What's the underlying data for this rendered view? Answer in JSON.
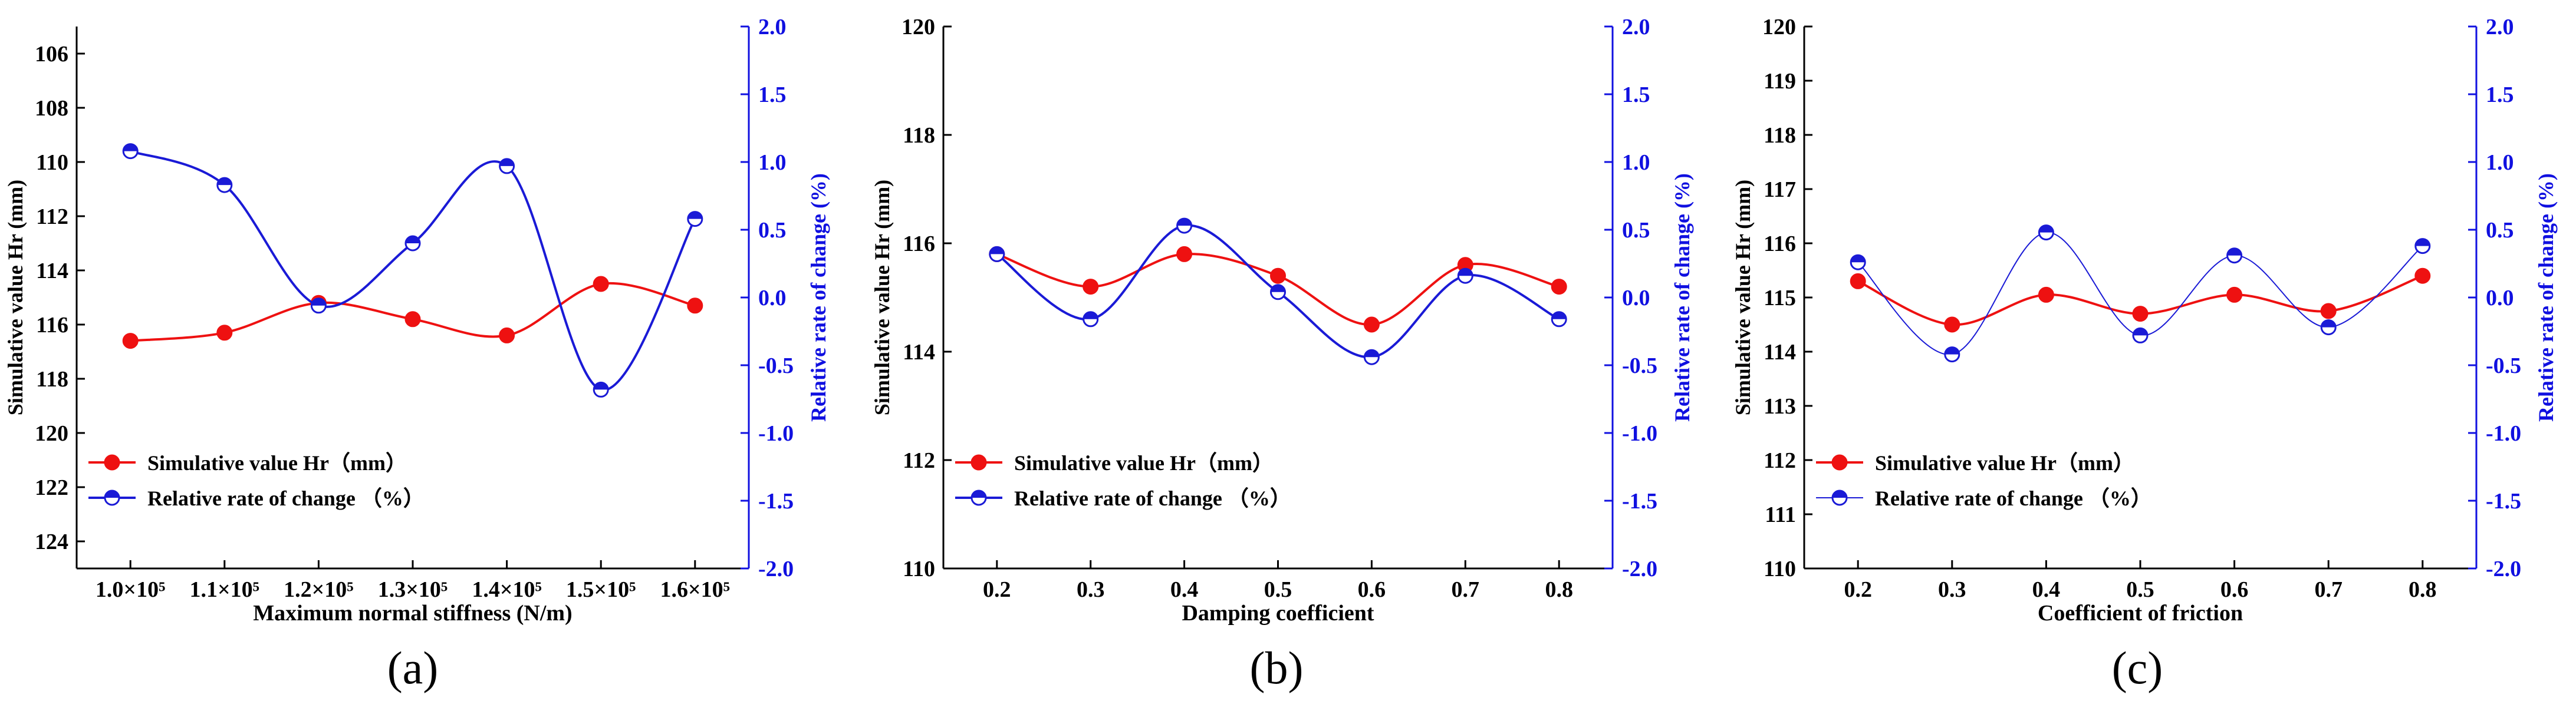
{
  "colors": {
    "red": "#ee1111",
    "blue": "#1a1ad6",
    "axis_blue": "#1010e0",
    "black": "#000000"
  },
  "chart_data": [
    {
      "type": "line",
      "panel_label": "(a)",
      "xlabel": "Maximum normal stiffness (N/m)",
      "ylabel_left": "Simulative value Hr (mm)",
      "ylabel_right": "Relative rate of change (%)",
      "categories": [
        "1.0×10⁵",
        "1.1×10⁵",
        "1.2×10⁵",
        "1.3×10⁵",
        "1.4×10⁵",
        "1.5×10⁵",
        "1.6×10⁵"
      ],
      "left_axis": {
        "min": 105,
        "max": 125,
        "reversed": true,
        "ticks": [
          "106",
          "108",
          "110",
          "112",
          "114",
          "116",
          "118",
          "120",
          "122",
          "124"
        ]
      },
      "right_axis": {
        "min": -2.0,
        "max": 2.0,
        "ticks": [
          "2.0",
          "1.5",
          "1.0",
          "0.5",
          "0.0",
          "-0.5",
          "-1.0",
          "-1.5",
          "-2.0"
        ]
      },
      "series": [
        {
          "name": "Simulative value Hr（mm）",
          "axis": "left",
          "color": "#ee1111",
          "values": [
            116.6,
            116.3,
            115.2,
            115.8,
            116.4,
            114.5,
            115.3
          ]
        },
        {
          "name": "Relative rate of change （%）",
          "axis": "right",
          "color": "#1a1ad6",
          "values": [
            1.08,
            0.83,
            -0.06,
            0.4,
            0.97,
            -0.68,
            0.58
          ]
        }
      ],
      "legend": "bottom-left"
    },
    {
      "type": "line",
      "panel_label": "(b)",
      "xlabel": "Damping coefficient",
      "ylabel_left": "Simulative value Hr (mm)",
      "ylabel_right": "Relative rate of change (%)",
      "categories": [
        "0.2",
        "0.3",
        "0.4",
        "0.5",
        "0.6",
        "0.7",
        "0.8"
      ],
      "left_axis": {
        "min": 110,
        "max": 120,
        "reversed": false,
        "ticks": [
          "110",
          "112",
          "114",
          "116",
          "118",
          "120"
        ]
      },
      "right_axis": {
        "min": -2.0,
        "max": 2.0,
        "ticks": [
          "2.0",
          "1.5",
          "1.0",
          "0.5",
          "0.0",
          "-0.5",
          "-1.0",
          "-1.5",
          "-2.0"
        ]
      },
      "series": [
        {
          "name": "Simulative value Hr（mm）",
          "axis": "left",
          "color": "#ee1111",
          "values": [
            115.8,
            115.2,
            115.8,
            115.4,
            114.5,
            115.6,
            115.2
          ]
        },
        {
          "name": "Relative rate of change （%）",
          "axis": "right",
          "color": "#1a1ad6",
          "values": [
            0.32,
            -0.16,
            0.53,
            0.04,
            -0.44,
            0.16,
            -0.16
          ]
        }
      ],
      "legend": "bottom-left"
    },
    {
      "type": "line",
      "panel_label": "(c)",
      "xlabel": "Coefficient of friction",
      "ylabel_left": "Simulative value Hr (mm)",
      "ylabel_right": "Relative rate of change (%)",
      "categories": [
        "0.2",
        "0.3",
        "0.4",
        "0.5",
        "0.6",
        "0.7",
        "0.8"
      ],
      "left_axis": {
        "min": 110,
        "max": 120,
        "reversed": false,
        "ticks": [
          "110",
          "111",
          "112",
          "113",
          "114",
          "115",
          "116",
          "117",
          "118",
          "119",
          "120"
        ]
      },
      "right_axis": {
        "min": -2.0,
        "max": 2.0,
        "ticks": [
          "2.0",
          "1.5",
          "1.0",
          "0.5",
          "0.0",
          "-0.5",
          "-1.0",
          "-1.5",
          "-2.0"
        ]
      },
      "series": [
        {
          "name": "Simulative value Hr（mm）",
          "axis": "left",
          "color": "#ee1111",
          "values": [
            115.3,
            114.5,
            115.05,
            114.7,
            115.05,
            114.75,
            115.4
          ]
        },
        {
          "name": "Relative rate of change （%）",
          "axis": "right",
          "color": "#1a1ad6",
          "thin": true,
          "values": [
            0.26,
            -0.42,
            0.48,
            -0.28,
            0.31,
            -0.22,
            0.38
          ]
        }
      ],
      "legend": "bottom-left"
    }
  ]
}
